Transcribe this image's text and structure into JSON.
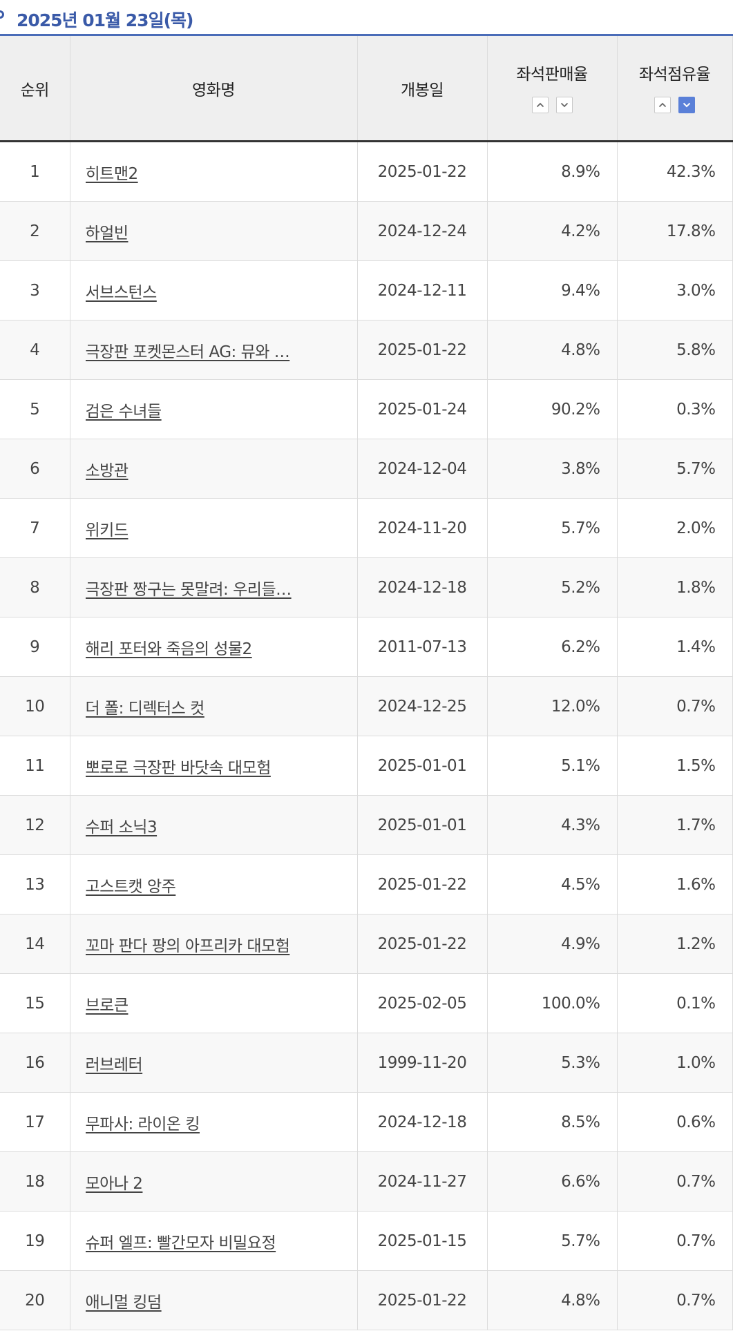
{
  "header": {
    "title": "2025년 01월 23일(목)"
  },
  "columns": {
    "rank": "순위",
    "name": "영화명",
    "release": "개봉일",
    "sales": "좌석판매율",
    "occupancy": "좌석점유율"
  },
  "sort": {
    "sales": {
      "asc": "sort-ascending",
      "desc": "sort-descending",
      "active": null
    },
    "occupancy": {
      "asc": "sort-ascending",
      "desc": "sort-descending",
      "active": "desc"
    }
  },
  "colors": {
    "accent": "#3a5aa8",
    "active_sort": "#5a80d8"
  },
  "rows": [
    {
      "rank": "1",
      "name": "히트맨2",
      "release": "2025-01-22",
      "sales": "8.9%",
      "occupancy": "42.3%"
    },
    {
      "rank": "2",
      "name": "하얼빈",
      "release": "2024-12-24",
      "sales": "4.2%",
      "occupancy": "17.8%"
    },
    {
      "rank": "3",
      "name": "서브스턴스",
      "release": "2024-12-11",
      "sales": "9.4%",
      "occupancy": "3.0%"
    },
    {
      "rank": "4",
      "name": "극장판 포켓몬스터 AG: 뮤와 …",
      "release": "2025-01-22",
      "sales": "4.8%",
      "occupancy": "5.8%"
    },
    {
      "rank": "5",
      "name": "검은 수녀들",
      "release": "2025-01-24",
      "sales": "90.2%",
      "occupancy": "0.3%"
    },
    {
      "rank": "6",
      "name": "소방관",
      "release": "2024-12-04",
      "sales": "3.8%",
      "occupancy": "5.7%"
    },
    {
      "rank": "7",
      "name": "위키드",
      "release": "2024-11-20",
      "sales": "5.7%",
      "occupancy": "2.0%"
    },
    {
      "rank": "8",
      "name": "극장판 짱구는 못말려: 우리들…",
      "release": "2024-12-18",
      "sales": "5.2%",
      "occupancy": "1.8%"
    },
    {
      "rank": "9",
      "name": "해리 포터와 죽음의 성물2",
      "release": "2011-07-13",
      "sales": "6.2%",
      "occupancy": "1.4%"
    },
    {
      "rank": "10",
      "name": "더 폴: 디렉터스 컷",
      "release": "2024-12-25",
      "sales": "12.0%",
      "occupancy": "0.7%"
    },
    {
      "rank": "11",
      "name": "뽀로로 극장판 바닷속 대모험",
      "release": "2025-01-01",
      "sales": "5.1%",
      "occupancy": "1.5%"
    },
    {
      "rank": "12",
      "name": "수퍼 소닉3",
      "release": "2025-01-01",
      "sales": "4.3%",
      "occupancy": "1.7%"
    },
    {
      "rank": "13",
      "name": "고스트캣 앙주",
      "release": "2025-01-22",
      "sales": "4.5%",
      "occupancy": "1.6%"
    },
    {
      "rank": "14",
      "name": "꼬마 판다 팡의 아프리카 대모험",
      "release": "2025-01-22",
      "sales": "4.9%",
      "occupancy": "1.2%"
    },
    {
      "rank": "15",
      "name": "브로큰",
      "release": "2025-02-05",
      "sales": "100.0%",
      "occupancy": "0.1%"
    },
    {
      "rank": "16",
      "name": "러브레터",
      "release": "1999-11-20",
      "sales": "5.3%",
      "occupancy": "1.0%"
    },
    {
      "rank": "17",
      "name": "무파사: 라이온 킹",
      "release": "2024-12-18",
      "sales": "8.5%",
      "occupancy": "0.6%"
    },
    {
      "rank": "18",
      "name": "모아나 2",
      "release": "2024-11-27",
      "sales": "6.6%",
      "occupancy": "0.7%"
    },
    {
      "rank": "19",
      "name": "슈퍼 엘프: 빨간모자 비밀요정",
      "release": "2025-01-15",
      "sales": "5.7%",
      "occupancy": "0.7%"
    },
    {
      "rank": "20",
      "name": "애니멀 킹덤",
      "release": "2025-01-22",
      "sales": "4.8%",
      "occupancy": "0.7%"
    }
  ]
}
